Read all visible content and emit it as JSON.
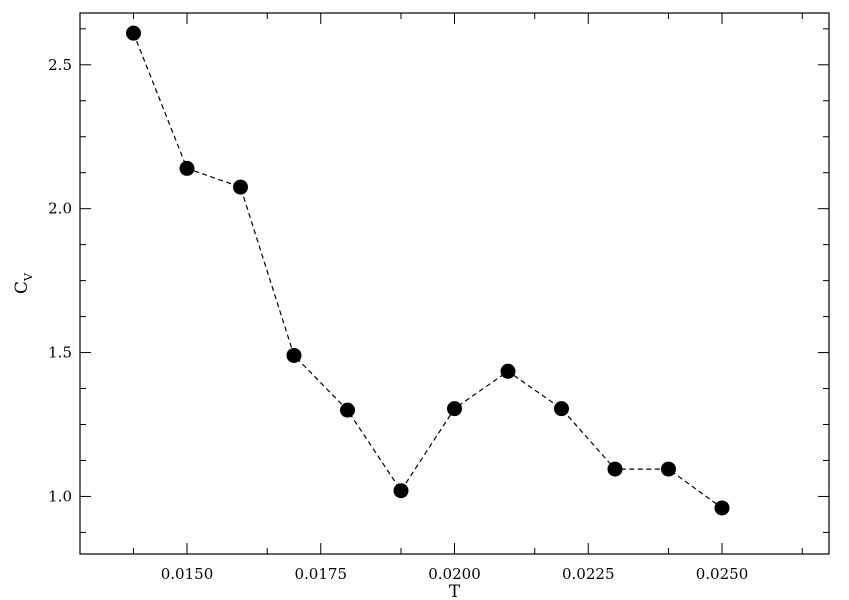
{
  "chart_data": {
    "type": "scatter",
    "title": "",
    "xlabel": "T",
    "ylabel": {
      "main": "C",
      "subscript": "V"
    },
    "xlim": [
      0.013,
      0.027
    ],
    "ylim": [
      0.8,
      2.68
    ],
    "x_ticks": [
      {
        "value": 0.015,
        "label": "0.0150"
      },
      {
        "value": 0.0175,
        "label": "0.0175"
      },
      {
        "value": 0.02,
        "label": "0.0200"
      },
      {
        "value": 0.0225,
        "label": "0.0225"
      },
      {
        "value": 0.025,
        "label": "0.0250"
      }
    ],
    "x_minor_ticks": [
      0.014,
      0.0165,
      0.019,
      0.0215,
      0.024,
      0.0265
    ],
    "y_ticks": [
      {
        "value": 1.0,
        "label": "1.0"
      },
      {
        "value": 1.5,
        "label": "1.5"
      },
      {
        "value": 2.0,
        "label": "2.0"
      },
      {
        "value": 2.5,
        "label": "2.5"
      }
    ],
    "y_minor_ticks": [
      0.875,
      1.125,
      1.25,
      1.375,
      1.625,
      1.75,
      1.875,
      2.125,
      2.25,
      2.375,
      2.625
    ],
    "grid": false,
    "legend": "none",
    "series": [
      {
        "color": "#000000",
        "line_style": "dashed",
        "marker": "filled-circle",
        "x": [
          0.014,
          0.015,
          0.016,
          0.017,
          0.018,
          0.019,
          0.02,
          0.021,
          0.022,
          0.023,
          0.024,
          0.025
        ],
        "y": [
          2.61,
          2.14,
          2.075,
          1.49,
          1.3,
          1.02,
          1.305,
          1.435,
          1.305,
          1.095,
          1.095,
          0.96
        ]
      }
    ]
  }
}
